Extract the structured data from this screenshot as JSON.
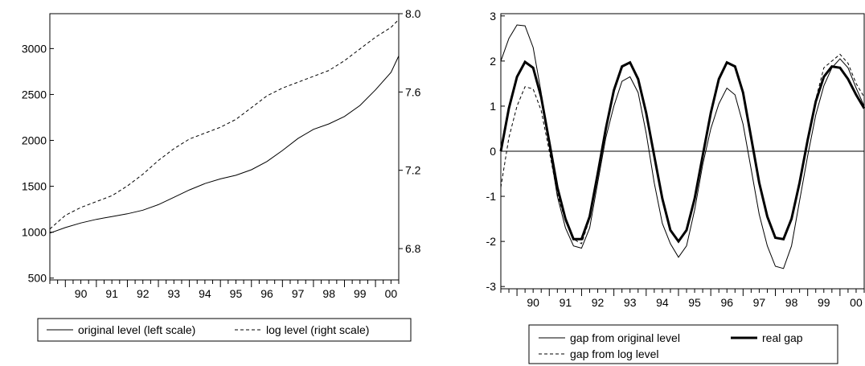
{
  "chart_data": [
    {
      "type": "line",
      "x_tick_labels": [
        "90",
        "91",
        "92",
        "93",
        "94",
        "95",
        "96",
        "97",
        "98",
        "99",
        "00"
      ],
      "xlim": [
        1989.5,
        2000.75
      ],
      "y_left": {
        "ticks": [
          "500",
          "1000",
          "1500",
          "2000",
          "2500",
          "3000"
        ],
        "ylim": [
          480,
          3380
        ]
      },
      "y_right": {
        "ticks": [
          "6.8",
          "7.2",
          "7.6",
          "8.0"
        ],
        "ylim": [
          6.64,
          8.0
        ]
      },
      "legend_position": "bottom",
      "grid": false,
      "series": [
        {
          "name": "original level (left scale)",
          "axis": "left",
          "style": "solid",
          "x": [
            1989.5,
            1990.0,
            1990.5,
            1991.0,
            1991.5,
            1992.0,
            1992.5,
            1993.0,
            1993.5,
            1994.0,
            1994.5,
            1995.0,
            1995.5,
            1996.0,
            1996.5,
            1997.0,
            1997.5,
            1998.0,
            1998.5,
            1999.0,
            1999.5,
            2000.0,
            2000.5,
            2000.75
          ],
          "y": [
            990,
            1050,
            1100,
            1140,
            1170,
            1200,
            1240,
            1300,
            1380,
            1460,
            1530,
            1580,
            1620,
            1680,
            1770,
            1890,
            2020,
            2120,
            2180,
            2260,
            2380,
            2550,
            2740,
            2920
          ]
        },
        {
          "name": "log level (right scale)",
          "axis": "right",
          "style": "dashed",
          "x": [
            1989.5,
            1990.0,
            1990.5,
            1991.0,
            1991.5,
            1992.0,
            1992.5,
            1993.0,
            1993.5,
            1994.0,
            1994.5,
            1995.0,
            1995.5,
            1996.0,
            1996.5,
            1997.0,
            1997.5,
            1998.0,
            1998.5,
            1999.0,
            1999.5,
            2000.0,
            2000.5,
            2000.75
          ],
          "y": [
            6.9,
            6.97,
            7.01,
            7.04,
            7.07,
            7.12,
            7.18,
            7.25,
            7.31,
            7.36,
            7.39,
            7.42,
            7.46,
            7.52,
            7.58,
            7.62,
            7.65,
            7.68,
            7.71,
            7.76,
            7.82,
            7.88,
            7.93,
            7.97
          ]
        }
      ]
    },
    {
      "type": "line",
      "x_tick_labels": [
        "90",
        "91",
        "92",
        "93",
        "94",
        "95",
        "96",
        "97",
        "98",
        "99",
        "00"
      ],
      "xlim": [
        1989.5,
        2000.75
      ],
      "y_ticks": [
        "-3",
        "-2",
        "-1",
        "0",
        "1",
        "2",
        "3"
      ],
      "ylim": [
        -3.05,
        3.05
      ],
      "zero_line": true,
      "legend_position": "bottom",
      "grid": false,
      "series": [
        {
          "name": "gap from original level",
          "style": "thin",
          "x": [
            1989.5,
            1989.75,
            1990.0,
            1990.25,
            1990.5,
            1990.75,
            1991.0,
            1991.25,
            1991.5,
            1991.75,
            1992.0,
            1992.25,
            1992.5,
            1992.75,
            1993.0,
            1993.25,
            1993.5,
            1993.75,
            1994.0,
            1994.25,
            1994.5,
            1994.75,
            1995.0,
            1995.25,
            1995.5,
            1995.75,
            1996.0,
            1996.25,
            1996.5,
            1996.75,
            1997.0,
            1997.25,
            1997.5,
            1997.75,
            1998.0,
            1998.25,
            1998.5,
            1998.75,
            1999.0,
            1999.25,
            1999.5,
            1999.75,
            2000.0,
            2000.25,
            2000.5,
            2000.75
          ],
          "y": [
            2.0,
            2.5,
            2.8,
            2.78,
            2.3,
            1.3,
            0.1,
            -1.0,
            -1.7,
            -2.1,
            -2.15,
            -1.7,
            -0.7,
            0.3,
            1.0,
            1.55,
            1.65,
            1.3,
            0.4,
            -0.7,
            -1.6,
            -2.05,
            -2.35,
            -2.1,
            -1.3,
            -0.3,
            0.5,
            1.05,
            1.4,
            1.25,
            0.6,
            -0.4,
            -1.4,
            -2.1,
            -2.55,
            -2.6,
            -2.1,
            -1.1,
            -0.1,
            0.8,
            1.45,
            1.85,
            2.05,
            1.85,
            1.4,
            1.0
          ]
        },
        {
          "name": "real gap",
          "style": "bold",
          "x": [
            1989.5,
            1989.75,
            1990.0,
            1990.25,
            1990.5,
            1990.75,
            1991.0,
            1991.25,
            1991.5,
            1991.75,
            1992.0,
            1992.25,
            1992.5,
            1992.75,
            1993.0,
            1993.25,
            1993.5,
            1993.75,
            1994.0,
            1994.25,
            1994.5,
            1994.75,
            1995.0,
            1995.25,
            1995.5,
            1995.75,
            1996.0,
            1996.25,
            1996.5,
            1996.75,
            1997.0,
            1997.25,
            1997.5,
            1997.75,
            1998.0,
            1998.25,
            1998.5,
            1998.75,
            1999.0,
            1999.25,
            1999.5,
            1999.75,
            2000.0,
            2000.25,
            2000.5,
            2000.75
          ],
          "y": [
            0.0,
            0.95,
            1.65,
            1.98,
            1.85,
            1.2,
            0.2,
            -0.8,
            -1.5,
            -1.95,
            -1.95,
            -1.45,
            -0.5,
            0.5,
            1.35,
            1.88,
            1.97,
            1.6,
            0.85,
            -0.1,
            -1.05,
            -1.75,
            -2.0,
            -1.75,
            -1.05,
            -0.1,
            0.85,
            1.6,
            1.97,
            1.88,
            1.3,
            0.3,
            -0.7,
            -1.45,
            -1.92,
            -1.95,
            -1.5,
            -0.7,
            0.25,
            1.1,
            1.65,
            1.88,
            1.85,
            1.6,
            1.25,
            0.95
          ]
        },
        {
          "name": "gap from log level",
          "style": "dashed",
          "x": [
            1989.5,
            1989.75,
            1990.0,
            1990.25,
            1990.5,
            1990.75,
            1991.0,
            1991.25,
            1991.5,
            1991.75,
            1992.0,
            1992.25,
            1992.5,
            1992.75,
            1993.0,
            1993.25,
            1993.5,
            1993.75,
            1994.0,
            1994.25,
            1994.5,
            1994.75,
            1995.0,
            1995.25,
            1995.5,
            1995.75,
            1996.0,
            1996.25,
            1996.5,
            1996.75,
            1997.0,
            1997.25,
            1997.5,
            1997.75,
            1998.0,
            1998.25,
            1998.5,
            1998.75,
            1999.0,
            1999.25,
            1999.5,
            1999.75,
            2000.0,
            2000.25,
            2000.5,
            2000.75
          ],
          "y": [
            -0.8,
            0.3,
            1.0,
            1.43,
            1.38,
            0.9,
            0.0,
            -0.95,
            -1.55,
            -1.95,
            -2.05,
            -1.5,
            -0.55,
            0.45,
            1.3,
            1.85,
            1.97,
            1.6,
            0.8,
            -0.15,
            -1.1,
            -1.75,
            -2.0,
            -1.75,
            -1.05,
            -0.1,
            0.85,
            1.6,
            1.97,
            1.9,
            1.3,
            0.3,
            -0.7,
            -1.45,
            -1.92,
            -1.95,
            -1.5,
            -0.7,
            0.25,
            1.15,
            1.85,
            2.0,
            2.15,
            1.95,
            1.5,
            1.2
          ]
        }
      ]
    }
  ]
}
